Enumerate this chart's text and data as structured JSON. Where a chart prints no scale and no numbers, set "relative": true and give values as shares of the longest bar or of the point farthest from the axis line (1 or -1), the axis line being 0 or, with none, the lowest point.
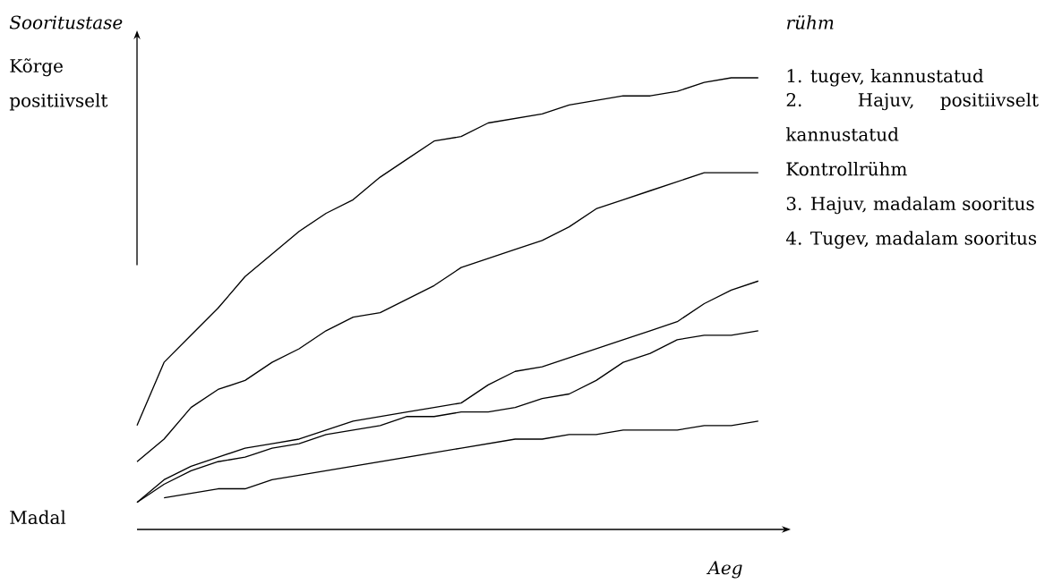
{
  "chart_data": {
    "type": "line",
    "relative": true,
    "ylabel": "Sooritustase",
    "xlabel": "Aeg",
    "legend_title": "rühm",
    "annotations": [
      "Kõrge positiivselt",
      "Madal"
    ],
    "categories": [
      null,
      null,
      null,
      null,
      null,
      null,
      null,
      null,
      null,
      null,
      null,
      null,
      null,
      null,
      null,
      null,
      null,
      null,
      null,
      null,
      null,
      null,
      null,
      null
    ],
    "series": [
      {
        "name": "1. tugev, kannustatud",
        "color": "#000000",
        "values": [
          0.23,
          0.37,
          0.43,
          0.49,
          0.56,
          0.61,
          0.66,
          0.7,
          0.73,
          0.78,
          0.82,
          0.86,
          0.87,
          0.9,
          0.91,
          0.92,
          0.94,
          0.95,
          0.96,
          0.96,
          0.97,
          0.99,
          1.0,
          1.0
        ]
      },
      {
        "name": "2. Hajuv, positiivselt kannustatud",
        "color": "#000000",
        "values": [
          0.15,
          0.2,
          0.27,
          0.31,
          0.33,
          0.37,
          0.4,
          0.44,
          0.47,
          0.48,
          0.51,
          0.54,
          0.58,
          0.6,
          0.62,
          0.64,
          0.67,
          0.71,
          0.73,
          0.75,
          0.77,
          0.79,
          0.79,
          0.79
        ]
      },
      {
        "name": "Kontrollrühm",
        "color": "#000000",
        "values": [
          0.06,
          0.11,
          0.14,
          0.16,
          0.18,
          0.19,
          0.2,
          0.22,
          0.24,
          0.25,
          0.26,
          0.27,
          0.28,
          0.32,
          0.35,
          0.36,
          0.38,
          0.4,
          0.42,
          0.44,
          0.46,
          0.5,
          0.53,
          0.55
        ]
      },
      {
        "name": "3. Hajuv, madalam sooritus",
        "color": "#000000",
        "values": [
          0.06,
          0.1,
          0.13,
          0.15,
          0.16,
          0.18,
          0.19,
          0.21,
          0.22,
          0.23,
          0.25,
          0.25,
          0.26,
          0.26,
          0.27,
          0.29,
          0.3,
          0.33,
          0.37,
          0.39,
          0.42,
          0.43,
          0.43,
          0.44
        ]
      },
      {
        "name": "4. Tugev, madalam sooritus",
        "color": "#000000",
        "values": [
          null,
          0.07,
          0.08,
          0.09,
          0.09,
          0.11,
          0.12,
          0.13,
          0.14,
          0.15,
          0.16,
          0.17,
          0.18,
          0.19,
          0.2,
          0.2,
          0.21,
          0.21,
          0.22,
          0.22,
          0.22,
          0.23,
          0.23,
          0.24
        ]
      }
    ]
  }
}
